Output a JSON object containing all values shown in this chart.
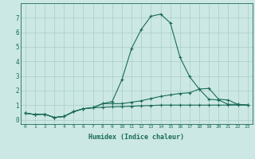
{
  "xlabel": "Humidex (Indice chaleur)",
  "x": [
    0,
    1,
    2,
    3,
    4,
    5,
    6,
    7,
    8,
    9,
    10,
    11,
    12,
    13,
    14,
    15,
    16,
    17,
    18,
    19,
    20,
    21,
    22,
    23
  ],
  "line1": [
    0.45,
    0.35,
    0.38,
    0.15,
    0.22,
    0.55,
    0.75,
    0.82,
    1.1,
    1.25,
    2.75,
    4.9,
    6.2,
    7.1,
    7.25,
    6.65,
    4.3,
    2.95,
    2.1,
    1.4,
    1.35,
    1.05,
    1.05,
    1.0
  ],
  "line2": [
    0.45,
    0.35,
    0.38,
    0.15,
    0.22,
    0.55,
    0.75,
    0.82,
    1.1,
    1.1,
    1.1,
    1.2,
    1.3,
    1.45,
    1.6,
    1.7,
    1.8,
    1.85,
    2.1,
    2.15,
    1.4,
    1.35,
    1.05,
    1.0
  ],
  "line3": [
    0.45,
    0.35,
    0.38,
    0.15,
    0.22,
    0.55,
    0.75,
    0.82,
    0.85,
    0.88,
    0.9,
    0.92,
    0.95,
    0.97,
    1.0,
    1.0,
    1.0,
    1.0,
    1.0,
    1.0,
    1.0,
    1.0,
    1.0,
    1.0
  ],
  "line_color": "#1a6b5a",
  "bg_color": "#cce8e4",
  "grid_color": "#aaccc8",
  "ylim": [
    -0.3,
    8.0
  ],
  "xlim": [
    -0.5,
    23.5
  ],
  "yticks": [
    0,
    1,
    2,
    3,
    4,
    5,
    6,
    7
  ],
  "xticks": [
    0,
    1,
    2,
    3,
    4,
    5,
    6,
    7,
    8,
    9,
    10,
    11,
    12,
    13,
    14,
    15,
    16,
    17,
    18,
    19,
    20,
    21,
    22,
    23
  ]
}
